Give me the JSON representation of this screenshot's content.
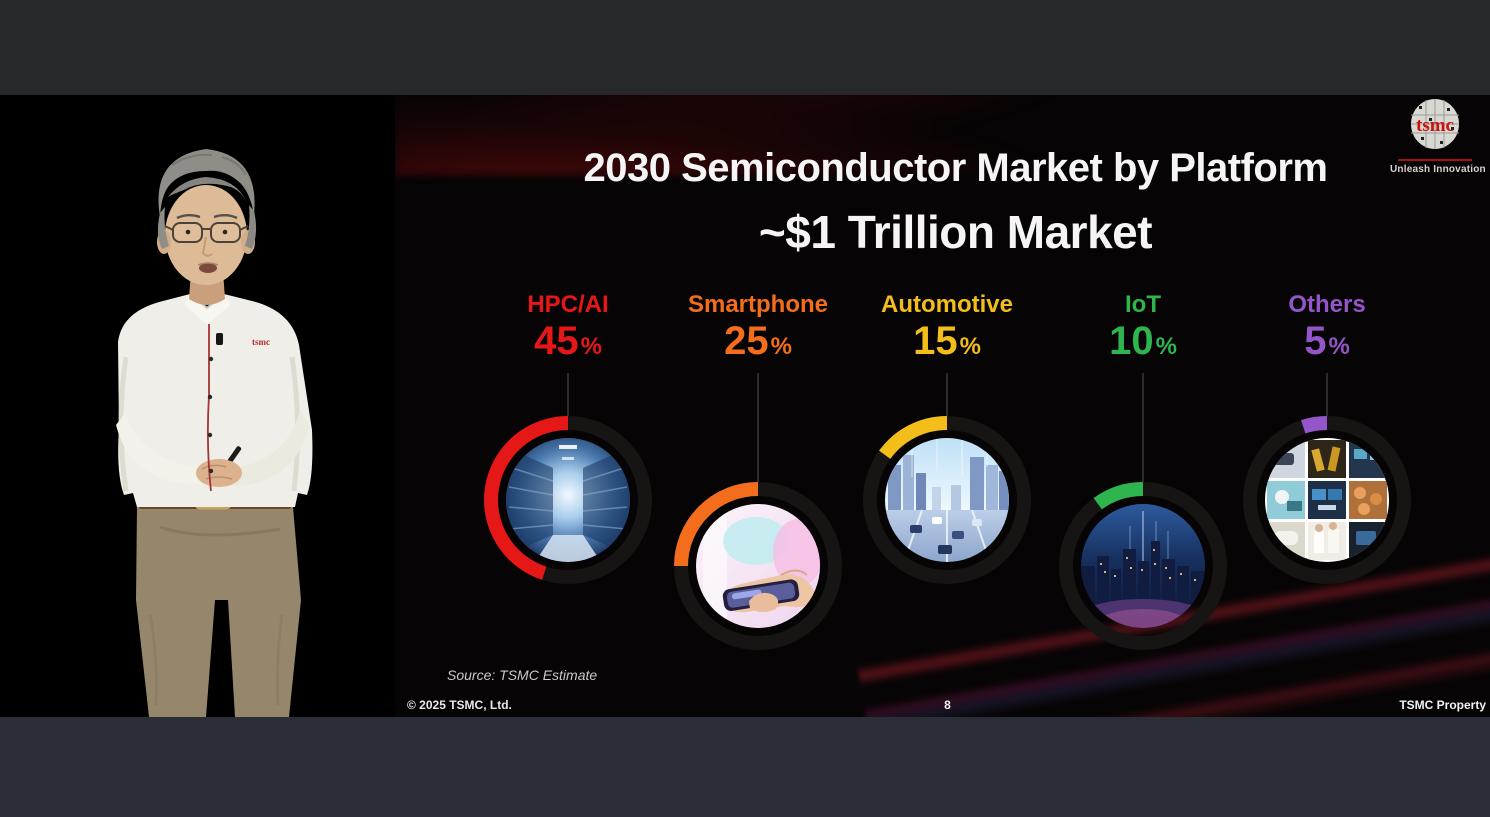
{
  "chart_data": {
    "type": "pie",
    "title": "2030 Semiconductor Market by Platform",
    "subtitle": "~$1 Trillion Market",
    "categories": [
      "HPC/AI",
      "Smartphone",
      "Automotive",
      "IoT",
      "Others"
    ],
    "values": [
      45,
      25,
      15,
      10,
      5
    ],
    "unit": "%",
    "colors": [
      "#e61717",
      "#f36d1d",
      "#f3bd1a",
      "#2fb54d",
      "#9355c8"
    ],
    "legend_position": "none",
    "layout": "five partial rings around circular photos, arcs sweep counterclockwise from top, remainder track dark gray"
  },
  "slide": {
    "title_line1": "2030 Semiconductor Market by Platform",
    "title_line2": "~$1 Trillion Market",
    "platforms": [
      {
        "label": "HPC/AI",
        "value": "45",
        "unit": "%",
        "color": "#e61717",
        "photo": "data-center-server-aisle"
      },
      {
        "label": "Smartphone",
        "value": "25",
        "unit": "%",
        "color": "#f36d1d",
        "photo": "hand-holding-smartphone"
      },
      {
        "label": "Automotive",
        "value": "15",
        "unit": "%",
        "color": "#f3bd1a",
        "photo": "smart-highway-traffic"
      },
      {
        "label": "IoT",
        "value": "10",
        "unit": "%",
        "color": "#2fb54d",
        "photo": "night-city-skyline"
      },
      {
        "label": "Others",
        "value": "5",
        "unit": "%",
        "color": "#9355c8",
        "photo": "applications-collage"
      }
    ],
    "source_note": "Source: TSMC Estimate",
    "footer_left": "© 2025 TSMC, Ltd.",
    "page_number": "8",
    "footer_right": "TSMC Property",
    "logo": {
      "text": "tsmc",
      "tagline": "Unleash Innovation",
      "color": "#cc1111"
    }
  },
  "video": {
    "description": "Presenter with gray hair and glasses, white shirt with red trim and tsmc logo, khaki trousers, speaking on a dark stage"
  }
}
